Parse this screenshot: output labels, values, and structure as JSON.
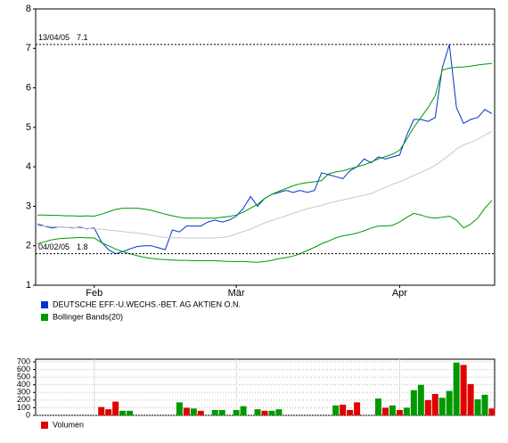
{
  "chart_data": [
    {
      "type": "line",
      "categories": [
        null,
        null,
        null,
        null,
        null,
        null,
        null,
        null,
        "Feb",
        null,
        null,
        null,
        null,
        null,
        null,
        null,
        null,
        null,
        null,
        null,
        null,
        null,
        null,
        null,
        null,
        null,
        null,
        null,
        "Mär",
        null,
        null,
        null,
        null,
        null,
        null,
        null,
        null,
        null,
        null,
        null,
        null,
        null,
        null,
        null,
        null,
        null,
        null,
        null,
        null,
        null,
        null,
        "Apr",
        null,
        null,
        null,
        null,
        null,
        null,
        null,
        null,
        null,
        null,
        null,
        null,
        null
      ],
      "ylim": [
        1,
        8
      ],
      "yticks": [
        1,
        2,
        3,
        4,
        5,
        6,
        7,
        8
      ],
      "series": [
        {
          "name": "DEUTSCHE EFF.-U.WECHS.-BET. AG AKTIEN O.N.",
          "color": "#0033cc",
          "values": [
            2.55,
            2.5,
            2.45,
            2.48,
            2.47,
            2.45,
            2.47,
            2.43,
            2.45,
            2.1,
            1.9,
            1.8,
            1.85,
            1.92,
            1.98,
            2.0,
            2.0,
            1.95,
            1.9,
            2.4,
            2.35,
            2.5,
            2.5,
            2.5,
            2.6,
            2.65,
            2.6,
            2.65,
            2.75,
            2.95,
            3.25,
            3.0,
            3.2,
            3.3,
            3.35,
            3.4,
            3.35,
            3.4,
            3.35,
            3.4,
            3.85,
            3.8,
            3.75,
            3.7,
            3.9,
            4.0,
            4.2,
            4.1,
            4.25,
            4.2,
            4.25,
            4.3,
            4.8,
            5.2,
            5.2,
            5.15,
            5.25,
            6.5,
            7.1,
            5.5,
            5.1,
            5.2,
            5.25,
            5.45,
            5.35
          ]
        },
        {
          "name": "Bollinger Bands(20)",
          "color": "#009900",
          "middle_color": "#c8c8c8",
          "upper": [
            2.78,
            2.78,
            2.77,
            2.77,
            2.76,
            2.76,
            2.75,
            2.76,
            2.75,
            2.8,
            2.86,
            2.92,
            2.95,
            2.95,
            2.95,
            2.93,
            2.9,
            2.85,
            2.8,
            2.76,
            2.72,
            2.7,
            2.7,
            2.7,
            2.7,
            2.7,
            2.72,
            2.74,
            2.78,
            2.85,
            2.95,
            3.05,
            3.2,
            3.3,
            3.38,
            3.45,
            3.52,
            3.57,
            3.6,
            3.62,
            3.65,
            3.82,
            3.87,
            3.9,
            3.95,
            4.0,
            4.05,
            4.12,
            4.2,
            4.26,
            4.32,
            4.42,
            4.7,
            5.0,
            5.25,
            5.5,
            5.8,
            6.45,
            6.5,
            6.52,
            6.53,
            6.55,
            6.58,
            6.6,
            6.62
          ],
          "middle": [
            2.5,
            2.5,
            2.49,
            2.48,
            2.47,
            2.46,
            2.45,
            2.44,
            2.43,
            2.42,
            2.4,
            2.38,
            2.36,
            2.34,
            2.32,
            2.3,
            2.27,
            2.24,
            2.21,
            2.2,
            2.2,
            2.2,
            2.2,
            2.2,
            2.2,
            2.2,
            2.21,
            2.24,
            2.3,
            2.36,
            2.42,
            2.5,
            2.58,
            2.64,
            2.7,
            2.76,
            2.82,
            2.88,
            2.94,
            2.98,
            3.02,
            3.08,
            3.12,
            3.16,
            3.2,
            3.24,
            3.28,
            3.32,
            3.4,
            3.48,
            3.56,
            3.62,
            3.7,
            3.78,
            3.86,
            3.94,
            4.04,
            4.16,
            4.3,
            4.45,
            4.55,
            4.62,
            4.7,
            4.8,
            4.9
          ],
          "lower": [
            2.05,
            2.1,
            2.15,
            2.18,
            2.19,
            2.2,
            2.21,
            2.2,
            2.2,
            2.08,
            2.0,
            1.92,
            1.85,
            1.8,
            1.75,
            1.71,
            1.68,
            1.66,
            1.65,
            1.64,
            1.63,
            1.63,
            1.62,
            1.62,
            1.62,
            1.62,
            1.61,
            1.6,
            1.6,
            1.6,
            1.59,
            1.58,
            1.6,
            1.63,
            1.67,
            1.7,
            1.74,
            1.8,
            1.88,
            1.96,
            2.05,
            2.12,
            2.2,
            2.25,
            2.28,
            2.32,
            2.38,
            2.45,
            2.5,
            2.5,
            2.52,
            2.6,
            2.72,
            2.82,
            2.78,
            2.72,
            2.7,
            2.72,
            2.75,
            2.65,
            2.45,
            2.55,
            2.7,
            2.95,
            3.15
          ]
        }
      ],
      "annotations": [
        {
          "text": "13/04/05",
          "value": 7.1
        },
        {
          "text": "04/02/05",
          "value": 1.8
        }
      ]
    },
    {
      "type": "bar",
      "ylim": [
        0,
        700
      ],
      "yticks": [
        0,
        100,
        200,
        300,
        400,
        500,
        600,
        700
      ],
      "grid": true,
      "series": [
        {
          "name": "Volumen",
          "color": "#e00000",
          "values": [
            0,
            0,
            0,
            0,
            0,
            0,
            0,
            0,
            0,
            110,
            80,
            180,
            60,
            60,
            0,
            0,
            0,
            0,
            0,
            0,
            170,
            100,
            90,
            60,
            0,
            70,
            70,
            0,
            70,
            120,
            0,
            80,
            60,
            60,
            80,
            0,
            0,
            0,
            0,
            0,
            0,
            0,
            130,
            140,
            70,
            170,
            0,
            0,
            220,
            100,
            130,
            70,
            100,
            330,
            400,
            200,
            280,
            230,
            320,
            690,
            660,
            410,
            210,
            270,
            90
          ],
          "colors": [
            "#009900",
            "#009900",
            "#009900",
            "#009900",
            "#009900",
            "#009900",
            "#009900",
            "#009900",
            "#009900",
            "#e00000",
            "#e00000",
            "#e00000",
            "#009900",
            "#009900",
            "#009900",
            "#009900",
            "#009900",
            "#009900",
            "#009900",
            "#009900",
            "#009900",
            "#e00000",
            "#009900",
            "#e00000",
            "#009900",
            "#009900",
            "#009900",
            "#009900",
            "#009900",
            "#009900",
            "#009900",
            "#009900",
            "#e00000",
            "#009900",
            "#009900",
            "#009900",
            "#009900",
            "#009900",
            "#009900",
            "#009900",
            "#009900",
            "#009900",
            "#009900",
            "#e00000",
            "#e00000",
            "#e00000",
            "#009900",
            "#009900",
            "#009900",
            "#e00000",
            "#009900",
            "#e00000",
            "#009900",
            "#009900",
            "#009900",
            "#e00000",
            "#e00000",
            "#009900",
            "#009900",
            "#009900",
            "#e00000",
            "#e00000",
            "#009900",
            "#009900",
            "#e00000"
          ]
        }
      ]
    }
  ]
}
